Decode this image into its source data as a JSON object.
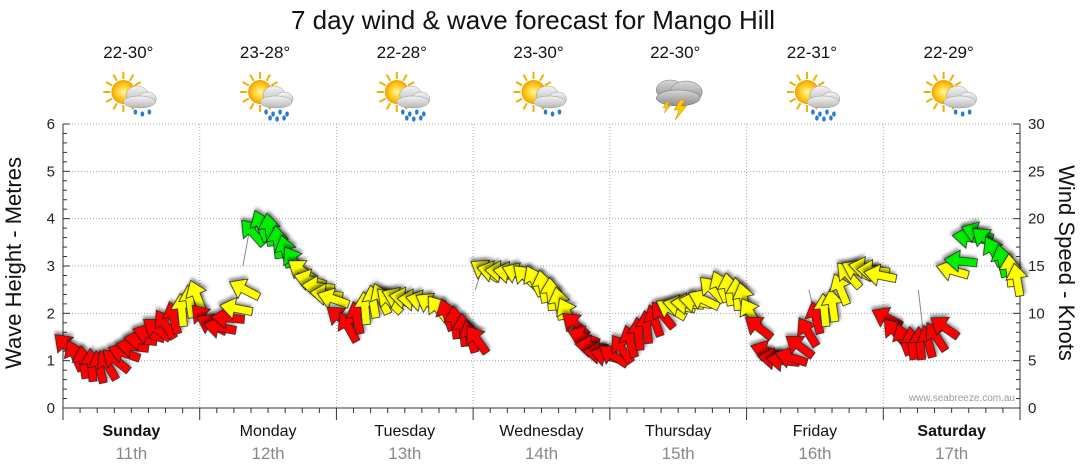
{
  "chart_data": {
    "type": "line",
    "title": "7 day wind & wave forecast for Mango Hill",
    "ylabel_left": "Wave Height - Metres",
    "ylabel_right": "Wind Speed - Knots",
    "ylim_left": [
      0,
      6
    ],
    "ylim_right": [
      0,
      30
    ],
    "yticks_left": [
      "0",
      "1",
      "2",
      "3",
      "4",
      "5",
      "6"
    ],
    "yticks_right": [
      "0",
      "5",
      "10",
      "15",
      "20",
      "25",
      "30"
    ],
    "credit": "www.seabreeze.com.au",
    "days": [
      {
        "name": "Sunday",
        "date": "11th",
        "temp": "22-30°",
        "icon": "sun-cloud-rain-icon",
        "bold": true
      },
      {
        "name": "Monday",
        "date": "12th",
        "temp": "23-28°",
        "icon": "sun-cloud-heavy-rain-icon",
        "bold": false
      },
      {
        "name": "Tuesday",
        "date": "13th",
        "temp": "22-28°",
        "icon": "sun-cloud-heavy-rain-icon",
        "bold": false
      },
      {
        "name": "Wednesday",
        "date": "14th",
        "temp": "23-30°",
        "icon": "sun-cloud-rain-icon",
        "bold": false
      },
      {
        "name": "Thursday",
        "date": "15th",
        "temp": "22-30°",
        "icon": "storm-cloud-icon",
        "bold": false
      },
      {
        "name": "Friday",
        "date": "16th",
        "temp": "22-31°",
        "icon": "sun-cloud-heavy-rain-icon",
        "bold": false
      },
      {
        "name": "Saturday",
        "date": "17th",
        "temp": "22-29°",
        "icon": "sun-cloud-rain-icon",
        "bold": true
      }
    ],
    "wind_colors": {
      "under_10": "#ff0000",
      "10_to_15": "#ffff00",
      "15_to_20": "#00ee00"
    },
    "series": [
      {
        "name": "wind",
        "unit": "knots",
        "x_days": [
          0,
          0.06,
          0.12,
          0.18,
          0.24,
          0.3,
          0.36,
          0.42,
          0.48,
          0.54,
          0.6,
          0.66,
          0.72,
          0.78,
          0.84,
          0.9,
          0.95,
          1.0,
          1.06,
          1.12,
          1.18,
          1.24,
          1.3,
          1.36,
          1.42,
          1.48,
          1.54,
          1.6,
          1.66,
          1.72,
          1.78,
          1.84,
          1.9,
          1.95,
          2.0,
          2.06,
          2.12,
          2.18,
          2.24,
          2.3,
          2.36,
          2.42,
          2.48,
          2.54,
          2.6,
          2.66,
          2.72,
          2.78,
          2.84,
          2.9,
          2.95,
          3.0,
          3.06,
          3.12,
          3.18,
          3.24,
          3.3,
          3.36,
          3.42,
          3.48,
          3.54,
          3.6,
          3.66,
          3.72,
          3.78,
          3.84,
          3.9,
          3.95,
          4.0,
          4.06,
          4.12,
          4.18,
          4.24,
          4.3,
          4.36,
          4.42,
          4.48,
          4.54,
          4.6,
          4.66,
          4.72,
          4.78,
          4.84,
          4.9,
          4.95,
          5.0,
          5.06,
          5.12,
          5.18,
          5.24,
          5.3,
          5.36,
          5.42,
          5.48,
          5.54,
          5.6,
          5.66,
          5.72,
          5.78,
          5.84,
          5.9,
          5.95,
          6.0,
          6.06,
          6.12,
          6.18,
          6.24,
          6.3,
          6.36,
          6.42,
          6.48,
          6.54,
          6.6,
          6.66,
          6.72,
          6.78,
          6.84,
          6.9,
          6.95
        ],
        "values": [
          6.5,
          5.5,
          4.8,
          4.5,
          4.3,
          4.5,
          5,
          5.8,
          6.5,
          7.2,
          7.8,
          8.3,
          8.8,
          9.5,
          10.3,
          11.2,
          11.8,
          9.5,
          8.8,
          8.5,
          9.5,
          10.5,
          12.5,
          18.5,
          19.2,
          18.8,
          17.5,
          16.5,
          15.5,
          14.5,
          13.5,
          12.8,
          12.0,
          11.5,
          9.5,
          8.5,
          9.5,
          10.5,
          11.2,
          11.5,
          11.3,
          11.6,
          11.6,
          11.4,
          11.3,
          11.0,
          10.4,
          9.8,
          9.0,
          8.2,
          7.5,
          7.2,
          14.5,
          14.4,
          14.4,
          14.3,
          14.2,
          13.8,
          13.4,
          12.8,
          12.0,
          11.0,
          10.0,
          8.8,
          7.5,
          6.5,
          5.8,
          5.5,
          5.5,
          6.2,
          7.0,
          7.8,
          8.5,
          9.2,
          9.8,
          10.4,
          10.8,
          11.0,
          11.2,
          11.4,
          12.5,
          12.8,
          12.5,
          12.0,
          11.5,
          10.0,
          8.5,
          6.0,
          5.2,
          5.0,
          5.3,
          6.5,
          8.0,
          9.5,
          10.3,
          10.8,
          12.5,
          14.0,
          14.5,
          14.8,
          14.5,
          14.0,
          9.5,
          8.0,
          7.2,
          6.8,
          6.8,
          7.0,
          7.5,
          8.5,
          14.5,
          15.5,
          18.0,
          18.5,
          17.8,
          16.5,
          15.5,
          14.5,
          13.5
        ]
      },
      {
        "name": "waves",
        "unit": "metres",
        "x_days": [
          1.36,
          3.06,
          5.5,
          6.3
        ],
        "values": [
          3.0,
          2.5,
          2.5,
          2.5
        ]
      }
    ]
  }
}
